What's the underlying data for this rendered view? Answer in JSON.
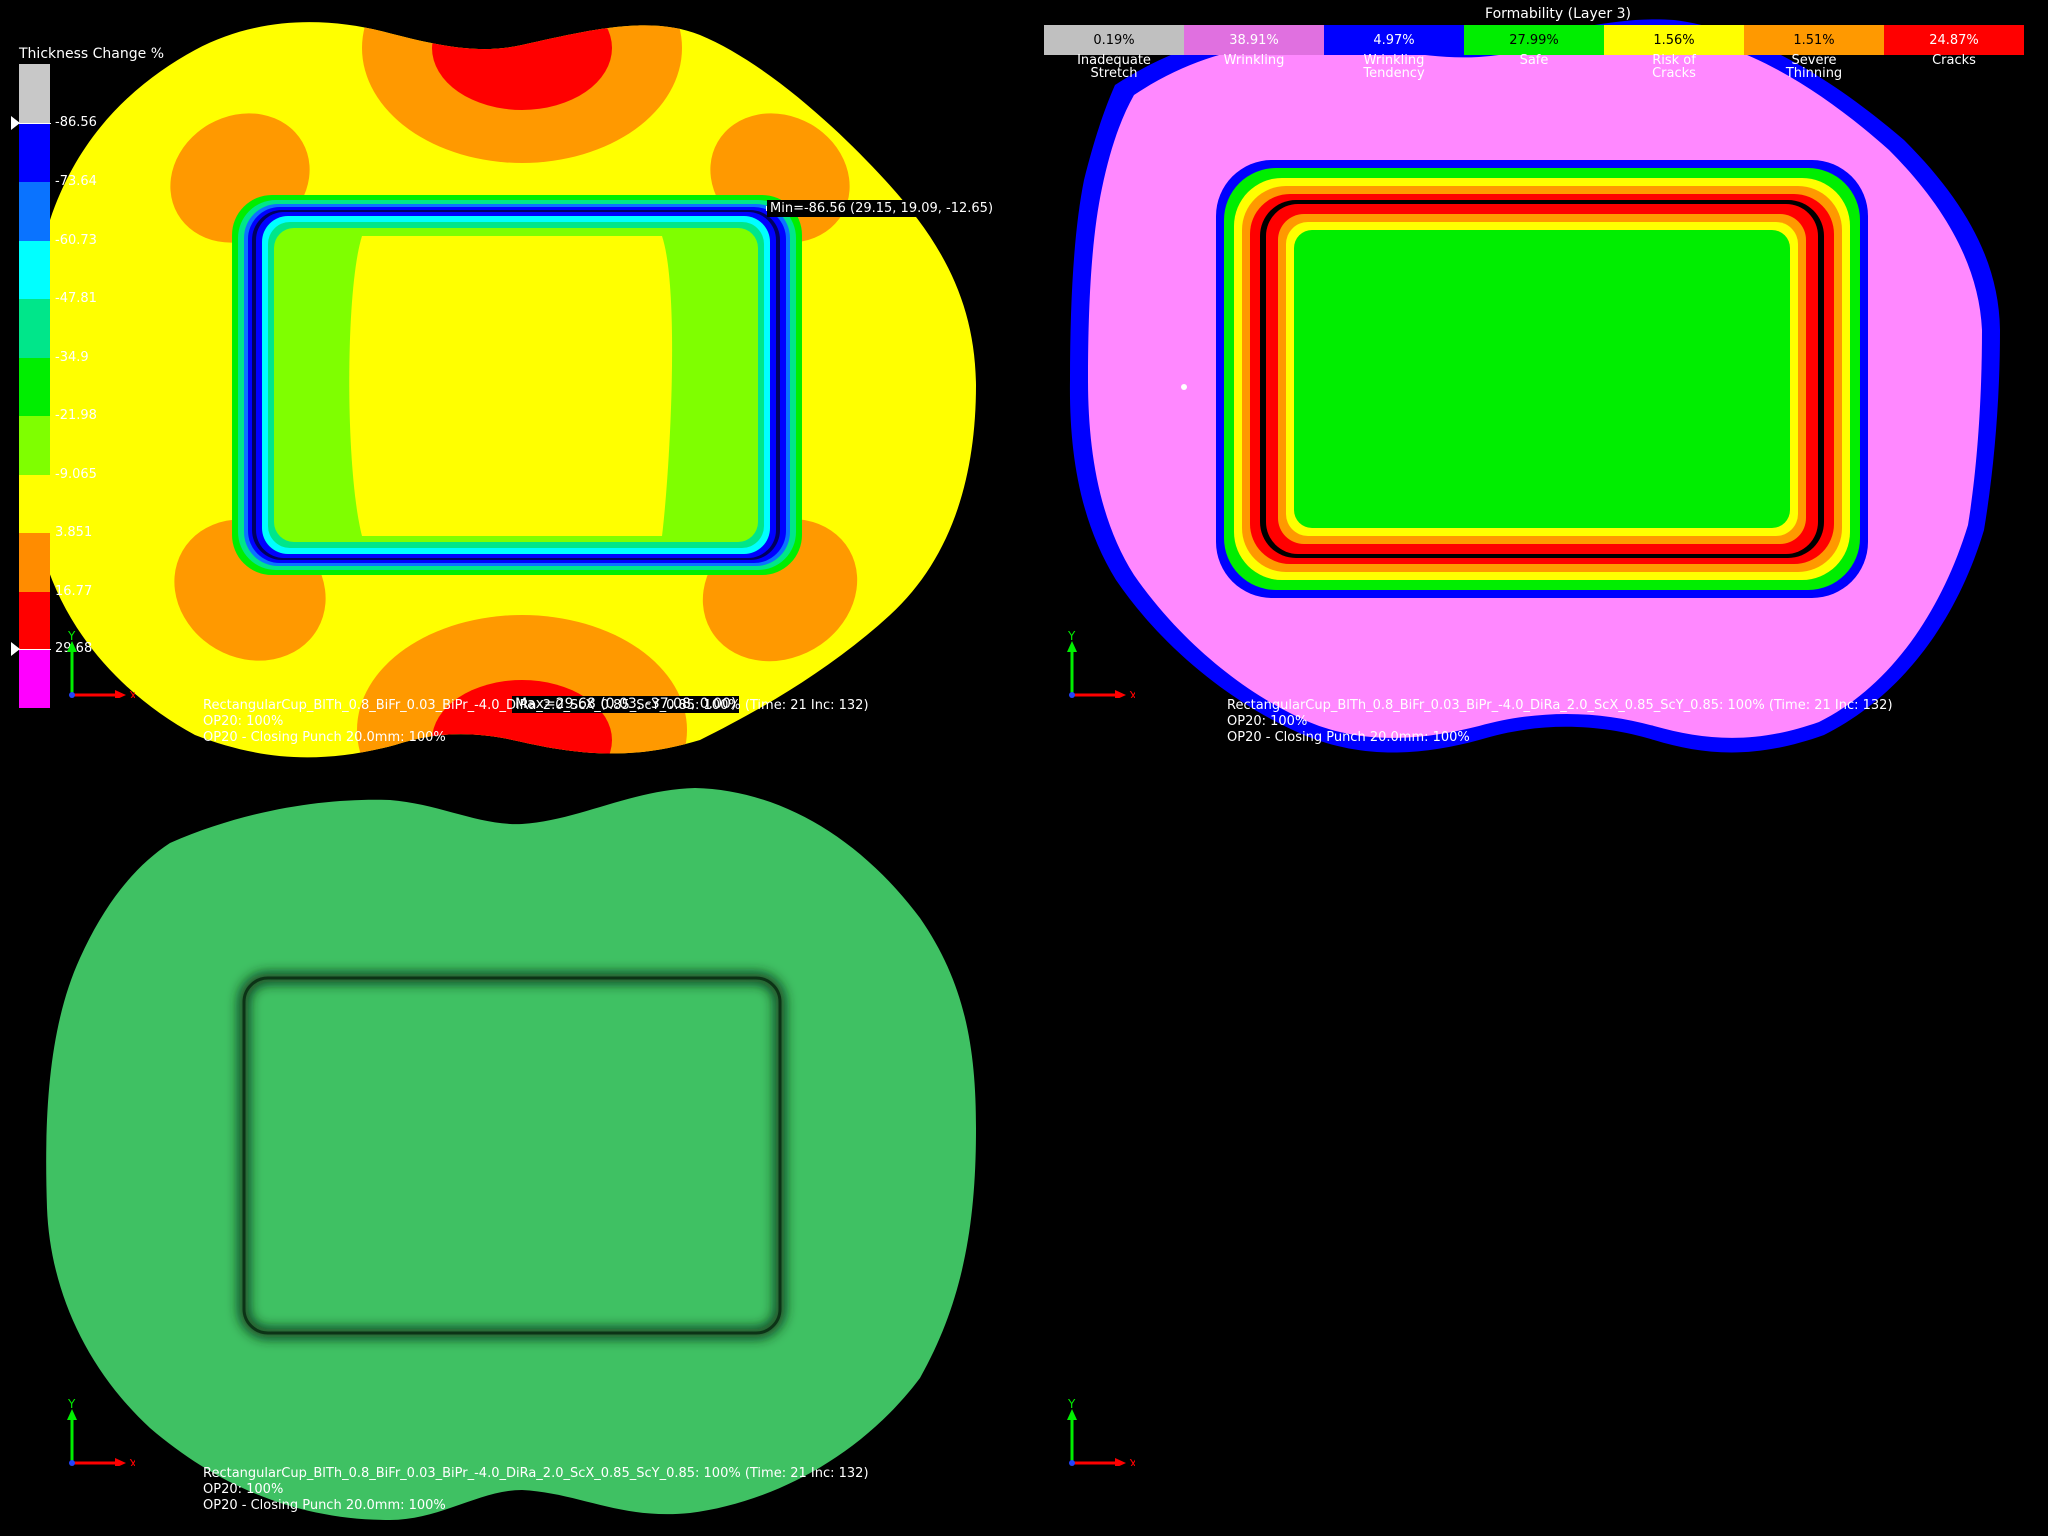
{
  "colors": {
    "background": "#000000",
    "plain_part": "#3fc163",
    "formability_wrinkling": "#ff88ff"
  },
  "thickness_legend": {
    "title": "Thickness Change %",
    "bands": [
      {
        "color": "#c8c8c8"
      },
      {
        "color": "#0000ff"
      },
      {
        "color": "#0a73ff"
      },
      {
        "color": "#00ffff"
      },
      {
        "color": "#00e68a"
      },
      {
        "color": "#00ee00"
      },
      {
        "color": "#7fff00"
      },
      {
        "color": "#ffff00"
      },
      {
        "color": "#ff8c00"
      },
      {
        "color": "#ff0000"
      },
      {
        "color": "#ff00ff"
      }
    ],
    "labels": [
      "-86.56",
      "-73.64",
      "-60.73",
      "-47.81",
      "-34.9",
      "-21.98",
      "-9.065",
      "3.851",
      "16.77",
      "29.68"
    ]
  },
  "viewport_thickness": {
    "min_label": "Min=-86.56 (29.15, 19.09, -12.65)",
    "max_label": "Max=29.68 (0.03, -37.08, 0.00)"
  },
  "formability_legend": {
    "title": "Formability (Layer 3)",
    "categories": [
      {
        "value": "0.19%",
        "name_line1": "Inadequate",
        "name_line2": "Stretch",
        "color": "#c0c0c0",
        "text_color": "#000000"
      },
      {
        "value": "38.91%",
        "name_line1": "Wrinkling",
        "name_line2": "",
        "color": "#e070e0",
        "text_color": "#ffffff"
      },
      {
        "value": "4.97%",
        "name_line1": "Wrinkling",
        "name_line2": "Tendency",
        "color": "#0000ff",
        "text_color": "#ffffff"
      },
      {
        "value": "27.99%",
        "name_line1": "Safe",
        "name_line2": "",
        "color": "#00ee00",
        "text_color": "#000000"
      },
      {
        "value": "1.56%",
        "name_line1": "Risk of",
        "name_line2": "Cracks",
        "color": "#ffff00",
        "text_color": "#000000"
      },
      {
        "value": "1.51%",
        "name_line1": "Severe",
        "name_line2": "Thinning",
        "color": "#ff9900",
        "text_color": "#000000"
      },
      {
        "value": "24.87%",
        "name_line1": "Cracks",
        "name_line2": "",
        "color": "#ff0000",
        "text_color": "#ffffff"
      }
    ]
  },
  "info_text": {
    "line1": "RectangularCup_BlTh_0.8_BiFr_0.03_BiPr_-4.0_DiRa_2.0_ScX_0.85_ScY_0.85: 100% (Time: 21 Inc: 132)",
    "line2": "OP20: 100%",
    "line3": "OP20 - Closing Punch  20.0mm: 100%"
  },
  "axis_triad": {
    "y_label": "Y",
    "x_label": "X"
  }
}
